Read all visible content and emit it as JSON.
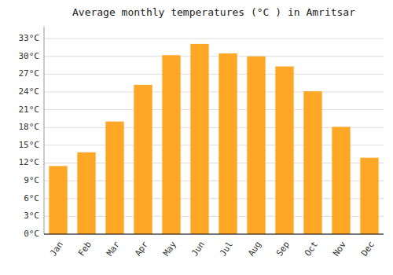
{
  "chart_data": {
    "type": "bar",
    "title": "Average monthly temperatures (°C ) in Amritsar",
    "categories": [
      "Jan",
      "Feb",
      "Mar",
      "Apr",
      "May",
      "Jun",
      "Jul",
      "Aug",
      "Sep",
      "Oct",
      "Nov",
      "Dec"
    ],
    "values": [
      11.5,
      13.8,
      19.0,
      25.2,
      30.2,
      32.1,
      30.5,
      30.0,
      28.3,
      24.1,
      18.1,
      12.9
    ],
    "color": "#FFA726",
    "ylim": [
      0,
      35
    ],
    "yticks": [
      {
        "value": 0,
        "label": "0°C"
      },
      {
        "value": 3,
        "label": "3°C"
      },
      {
        "value": 6,
        "label": "6°C"
      },
      {
        "value": 9,
        "label": "9°C"
      },
      {
        "value": 12,
        "label": "12°C"
      },
      {
        "value": 15,
        "label": "15°C"
      },
      {
        "value": 18,
        "label": "18°C"
      },
      {
        "value": 21,
        "label": "21°C"
      },
      {
        "value": 24,
        "label": "24°C"
      },
      {
        "value": 27,
        "label": "27°C"
      },
      {
        "value": 30,
        "label": "30°C"
      },
      {
        "value": 33,
        "label": "33°C"
      }
    ],
    "grid": true
  }
}
